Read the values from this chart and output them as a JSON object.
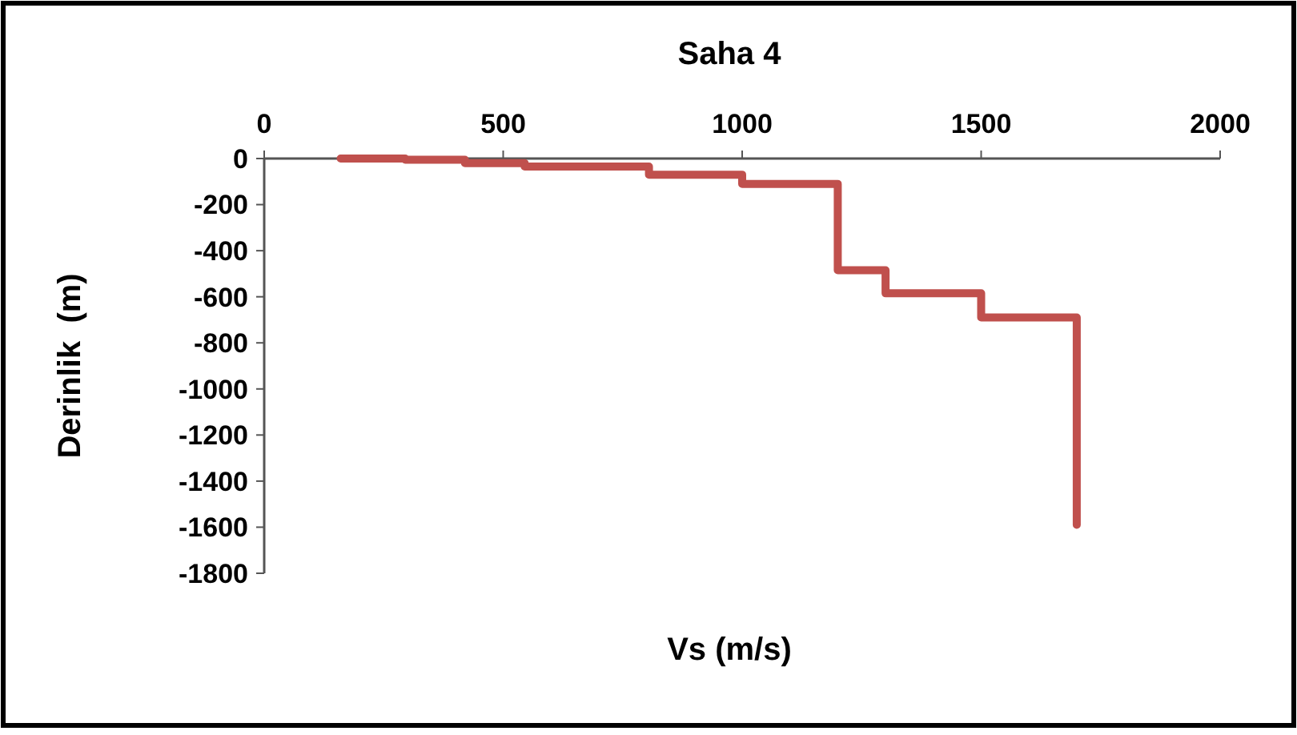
{
  "chart_data": {
    "type": "step",
    "title": "Saha 4",
    "xlabel": "Vs (m/s)",
    "ylabel": "Derinlik  (m)",
    "x": [
      160,
      295,
      420,
      545,
      805,
      1000,
      1200,
      1300,
      1500,
      1700
    ],
    "series": [
      {
        "color": "#c0504d",
        "values": [
          0,
          -5,
          -20,
          -35,
          -70,
          -110,
          -485,
          -585,
          -690,
          -1590
        ]
      }
    ],
    "xlim": [
      0,
      2000
    ],
    "xticks": [
      0,
      500,
      1000,
      1500,
      2000
    ],
    "ylim": [
      -1800,
      0
    ],
    "yticks": [
      0,
      -200,
      -400,
      -600,
      -800,
      -1000,
      -1200,
      -1400,
      -1600,
      -1800
    ],
    "grid": false
  }
}
